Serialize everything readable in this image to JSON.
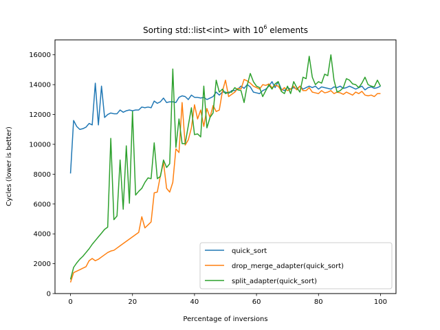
{
  "chart_data": {
    "type": "line",
    "title_main": "Sorting std::list<int> with 10",
    "title_sup": "6",
    "title_tail": " elements",
    "xlabel": "Percentage of inversions",
    "ylabel": "Cycles (lower is better)",
    "xlim": [
      -5,
      105
    ],
    "ylim": [
      0,
      17000
    ],
    "xticks": [
      0,
      20,
      40,
      60,
      80,
      100
    ],
    "yticks": [
      0,
      2000,
      4000,
      6000,
      8000,
      10000,
      12000,
      14000,
      16000
    ],
    "legend_position": "lower-right",
    "series": [
      {
        "name": "quick_sort",
        "color": "#1f77b4",
        "points": [
          [
            0,
            8050
          ],
          [
            1,
            11600
          ],
          [
            2,
            11200
          ],
          [
            3,
            11000
          ],
          [
            4,
            11050
          ],
          [
            5,
            11150
          ],
          [
            6,
            11400
          ],
          [
            7,
            11300
          ],
          [
            8,
            14100
          ],
          [
            9,
            11300
          ],
          [
            10,
            13900
          ],
          [
            11,
            11800
          ],
          [
            12,
            12000
          ],
          [
            13,
            12100
          ],
          [
            14,
            12050
          ],
          [
            15,
            12050
          ],
          [
            16,
            12300
          ],
          [
            17,
            12150
          ],
          [
            18,
            12250
          ],
          [
            19,
            12300
          ],
          [
            20,
            12250
          ],
          [
            21,
            12300
          ],
          [
            22,
            12300
          ],
          [
            23,
            12500
          ],
          [
            24,
            12450
          ],
          [
            25,
            12500
          ],
          [
            26,
            12450
          ],
          [
            27,
            12900
          ],
          [
            28,
            12750
          ],
          [
            29,
            12850
          ],
          [
            30,
            13100
          ],
          [
            31,
            12800
          ],
          [
            32,
            12850
          ],
          [
            33,
            12850
          ],
          [
            34,
            12800
          ],
          [
            35,
            13150
          ],
          [
            36,
            13250
          ],
          [
            37,
            13200
          ],
          [
            38,
            13000
          ],
          [
            39,
            13300
          ],
          [
            40,
            13150
          ],
          [
            41,
            13150
          ],
          [
            42,
            13100
          ],
          [
            43,
            13150
          ],
          [
            44,
            13000
          ],
          [
            45,
            13100
          ],
          [
            46,
            13200
          ],
          [
            47,
            13500
          ],
          [
            48,
            13300
          ],
          [
            49,
            13500
          ],
          [
            50,
            13500
          ],
          [
            51,
            13400
          ],
          [
            52,
            13600
          ],
          [
            53,
            13600
          ],
          [
            54,
            13700
          ],
          [
            55,
            13900
          ],
          [
            56,
            13750
          ],
          [
            57,
            14000
          ],
          [
            58,
            13850
          ],
          [
            59,
            13500
          ],
          [
            60,
            13450
          ],
          [
            61,
            13400
          ],
          [
            62,
            13600
          ],
          [
            63,
            13700
          ],
          [
            64,
            13900
          ],
          [
            65,
            14200
          ],
          [
            66,
            13800
          ],
          [
            67,
            14200
          ],
          [
            68,
            13700
          ],
          [
            69,
            13600
          ],
          [
            70,
            13800
          ],
          [
            71,
            13700
          ],
          [
            72,
            13800
          ],
          [
            73,
            13700
          ],
          [
            74,
            13900
          ],
          [
            75,
            13700
          ],
          [
            76,
            13800
          ],
          [
            77,
            13900
          ],
          [
            78,
            13800
          ],
          [
            79,
            13900
          ],
          [
            80,
            13700
          ],
          [
            81,
            13850
          ],
          [
            82,
            13800
          ],
          [
            83,
            13750
          ],
          [
            84,
            13700
          ],
          [
            85,
            13850
          ],
          [
            86,
            13800
          ],
          [
            87,
            13900
          ],
          [
            88,
            13750
          ],
          [
            89,
            13800
          ],
          [
            90,
            13900
          ],
          [
            91,
            13800
          ],
          [
            92,
            13700
          ],
          [
            93,
            13800
          ],
          [
            94,
            13900
          ],
          [
            95,
            13650
          ],
          [
            96,
            13800
          ],
          [
            97,
            13850
          ],
          [
            98,
            13750
          ],
          [
            99,
            13800
          ],
          [
            100,
            13900
          ]
        ]
      },
      {
        "name": "drop_merge_adapter(quick_sort)",
        "color": "#ff7f0e",
        "points": [
          [
            0,
            750
          ],
          [
            1,
            1400
          ],
          [
            2,
            1500
          ],
          [
            3,
            1600
          ],
          [
            4,
            1700
          ],
          [
            5,
            1800
          ],
          [
            6,
            2200
          ],
          [
            7,
            2350
          ],
          [
            8,
            2200
          ],
          [
            9,
            2300
          ],
          [
            10,
            2450
          ],
          [
            11,
            2600
          ],
          [
            12,
            2750
          ],
          [
            13,
            2850
          ],
          [
            14,
            2900
          ],
          [
            15,
            3050
          ],
          [
            16,
            3200
          ],
          [
            17,
            3350
          ],
          [
            18,
            3500
          ],
          [
            19,
            3650
          ],
          [
            20,
            3800
          ],
          [
            21,
            3950
          ],
          [
            22,
            4100
          ],
          [
            23,
            5150
          ],
          [
            24,
            4400
          ],
          [
            25,
            4600
          ],
          [
            26,
            4800
          ],
          [
            27,
            6750
          ],
          [
            28,
            6800
          ],
          [
            29,
            7900
          ],
          [
            30,
            8800
          ],
          [
            31,
            7050
          ],
          [
            32,
            6800
          ],
          [
            33,
            7450
          ],
          [
            34,
            9700
          ],
          [
            35,
            9450
          ],
          [
            36,
            12800
          ],
          [
            37,
            9950
          ],
          [
            38,
            10300
          ],
          [
            39,
            11100
          ],
          [
            40,
            12650
          ],
          [
            41,
            11700
          ],
          [
            42,
            12300
          ],
          [
            43,
            11200
          ],
          [
            44,
            12400
          ],
          [
            45,
            11800
          ],
          [
            46,
            12600
          ],
          [
            47,
            12200
          ],
          [
            48,
            12300
          ],
          [
            49,
            13550
          ],
          [
            50,
            14300
          ],
          [
            51,
            13200
          ],
          [
            52,
            13350
          ],
          [
            53,
            13500
          ],
          [
            54,
            13750
          ],
          [
            55,
            13700
          ],
          [
            56,
            14350
          ],
          [
            57,
            14250
          ],
          [
            58,
            14100
          ],
          [
            59,
            13900
          ],
          [
            60,
            13800
          ],
          [
            61,
            13700
          ],
          [
            62,
            14000
          ],
          [
            63,
            13950
          ],
          [
            64,
            14050
          ],
          [
            65,
            13800
          ],
          [
            66,
            13950
          ],
          [
            67,
            13900
          ],
          [
            68,
            13600
          ],
          [
            69,
            13800
          ],
          [
            70,
            13600
          ],
          [
            71,
            13700
          ],
          [
            72,
            13900
          ],
          [
            73,
            13650
          ],
          [
            74,
            13900
          ],
          [
            75,
            13600
          ],
          [
            76,
            13600
          ],
          [
            77,
            13800
          ],
          [
            78,
            13500
          ],
          [
            79,
            13450
          ],
          [
            80,
            13400
          ],
          [
            81,
            13600
          ],
          [
            82,
            13450
          ],
          [
            83,
            13500
          ],
          [
            84,
            13600
          ],
          [
            85,
            13400
          ],
          [
            86,
            13500
          ],
          [
            87,
            13450
          ],
          [
            88,
            13350
          ],
          [
            89,
            13500
          ],
          [
            90,
            13400
          ],
          [
            91,
            13300
          ],
          [
            92,
            13500
          ],
          [
            93,
            13400
          ],
          [
            94,
            13550
          ],
          [
            95,
            13300
          ],
          [
            96,
            13250
          ],
          [
            97,
            13300
          ],
          [
            98,
            13200
          ],
          [
            99,
            13400
          ],
          [
            100,
            13400
          ]
        ]
      },
      {
        "name": "split_adapter(quick_sort)",
        "color": "#2ca02c",
        "points": [
          [
            0,
            950
          ],
          [
            1,
            1750
          ],
          [
            2,
            2050
          ],
          [
            3,
            2300
          ],
          [
            4,
            2500
          ],
          [
            5,
            2750
          ],
          [
            6,
            3000
          ],
          [
            7,
            3300
          ],
          [
            8,
            3550
          ],
          [
            9,
            3800
          ],
          [
            10,
            4050
          ],
          [
            11,
            4300
          ],
          [
            12,
            4450
          ],
          [
            13,
            10400
          ],
          [
            14,
            4950
          ],
          [
            15,
            5200
          ],
          [
            16,
            8950
          ],
          [
            17,
            5650
          ],
          [
            18,
            9900
          ],
          [
            19,
            6050
          ],
          [
            20,
            12200
          ],
          [
            21,
            6600
          ],
          [
            22,
            6850
          ],
          [
            23,
            7050
          ],
          [
            24,
            7450
          ],
          [
            25,
            7750
          ],
          [
            26,
            7700
          ],
          [
            27,
            10100
          ],
          [
            28,
            7700
          ],
          [
            29,
            7850
          ],
          [
            30,
            8950
          ],
          [
            31,
            8450
          ],
          [
            32,
            8700
          ],
          [
            33,
            15050
          ],
          [
            34,
            9800
          ],
          [
            35,
            11700
          ],
          [
            36,
            10050
          ],
          [
            37,
            10050
          ],
          [
            38,
            11250
          ],
          [
            39,
            12450
          ],
          [
            40,
            10650
          ],
          [
            41,
            10700
          ],
          [
            42,
            10500
          ],
          [
            43,
            13900
          ],
          [
            44,
            11100
          ],
          [
            45,
            11800
          ],
          [
            46,
            12100
          ],
          [
            47,
            14300
          ],
          [
            48,
            13500
          ],
          [
            49,
            13700
          ],
          [
            50,
            13400
          ],
          [
            51,
            13500
          ],
          [
            52,
            13500
          ],
          [
            53,
            13800
          ],
          [
            54,
            13650
          ],
          [
            55,
            13600
          ],
          [
            56,
            12800
          ],
          [
            57,
            13950
          ],
          [
            58,
            14750
          ],
          [
            59,
            14200
          ],
          [
            60,
            13900
          ],
          [
            61,
            13800
          ],
          [
            62,
            13200
          ],
          [
            63,
            13600
          ],
          [
            64,
            14000
          ],
          [
            65,
            13700
          ],
          [
            66,
            14050
          ],
          [
            67,
            14200
          ],
          [
            68,
            13550
          ],
          [
            69,
            13400
          ],
          [
            70,
            13900
          ],
          [
            71,
            13400
          ],
          [
            72,
            14200
          ],
          [
            73,
            13800
          ],
          [
            74,
            13500
          ],
          [
            75,
            14500
          ],
          [
            76,
            14400
          ],
          [
            77,
            15900
          ],
          [
            78,
            14500
          ],
          [
            79,
            14000
          ],
          [
            80,
            14200
          ],
          [
            81,
            14100
          ],
          [
            82,
            14700
          ],
          [
            83,
            14600
          ],
          [
            84,
            16000
          ],
          [
            85,
            14300
          ],
          [
            86,
            13500
          ],
          [
            87,
            13600
          ],
          [
            88,
            13800
          ],
          [
            89,
            14400
          ],
          [
            90,
            14300
          ],
          [
            91,
            14050
          ],
          [
            92,
            14000
          ],
          [
            93,
            13800
          ],
          [
            94,
            14100
          ],
          [
            95,
            14500
          ],
          [
            96,
            14000
          ],
          [
            97,
            13900
          ],
          [
            98,
            13850
          ],
          [
            99,
            14300
          ],
          [
            100,
            13900
          ]
        ]
      }
    ]
  }
}
